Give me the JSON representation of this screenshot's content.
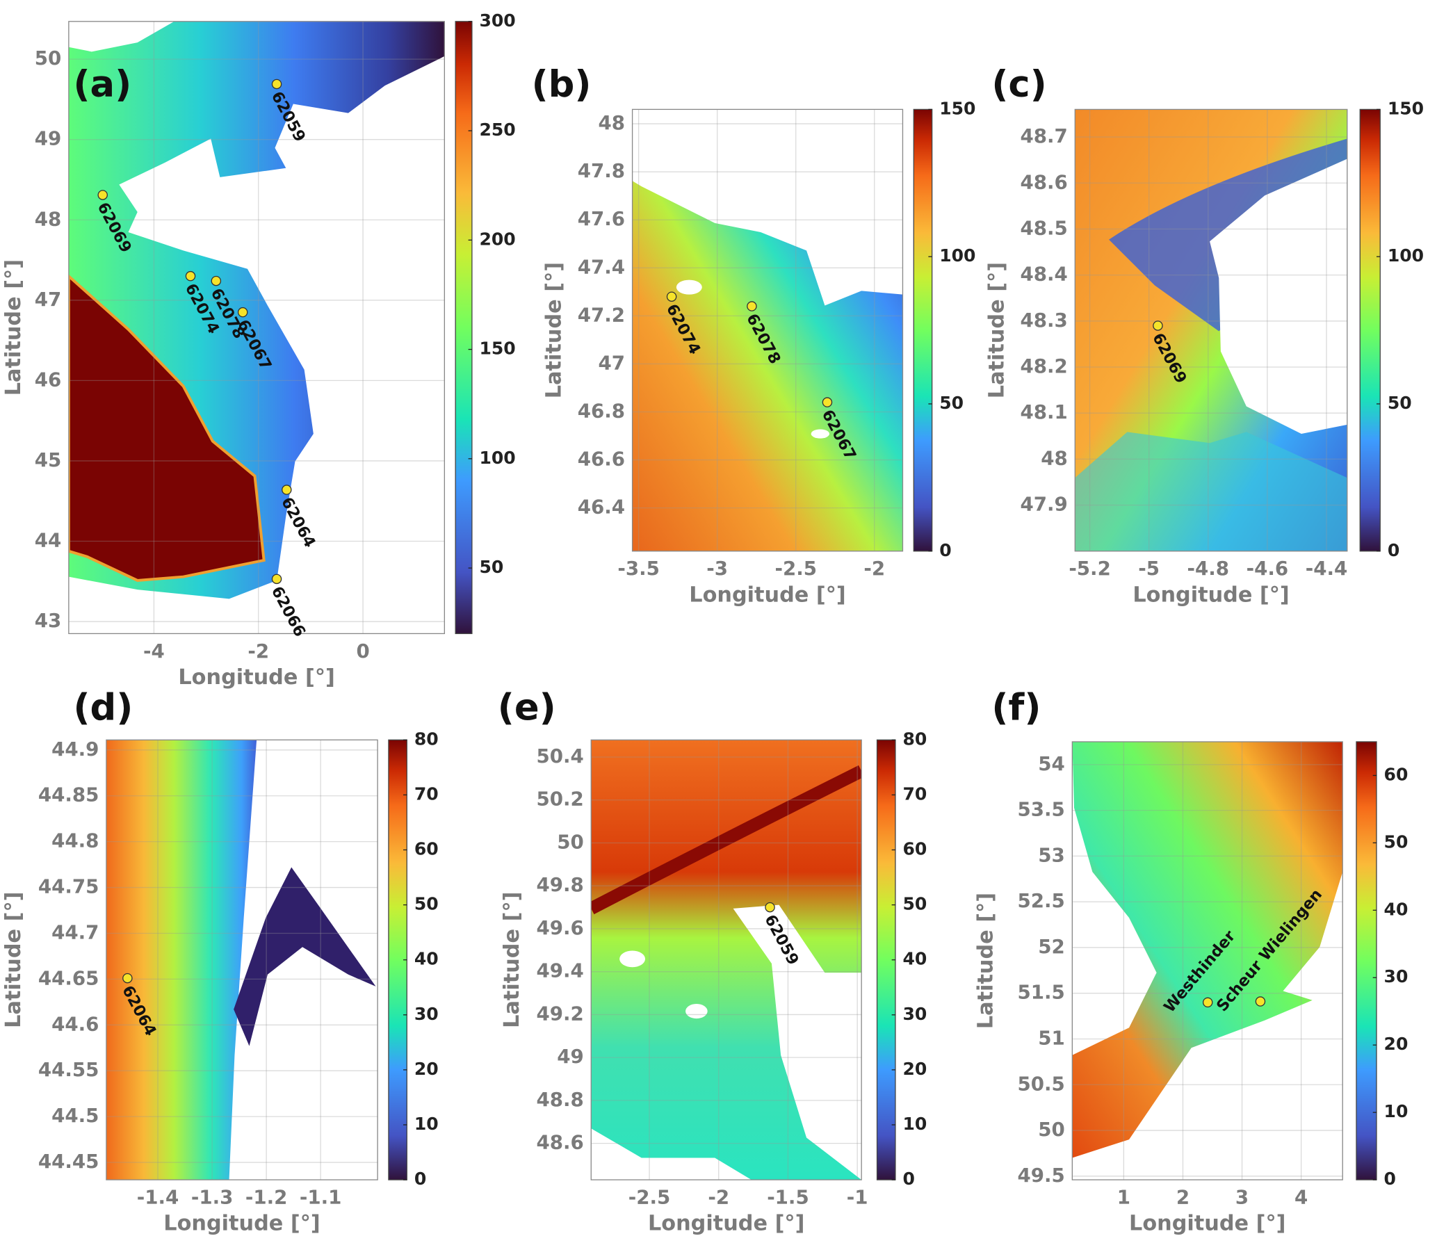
{
  "panels": [
    {
      "label": "(a)",
      "xlabel": "Longitude [°]",
      "ylabel": "Latitude [°]",
      "xlim": [
        -5.63,
        1.56
      ],
      "ylim": [
        42.85,
        50.47
      ],
      "xticks": [
        -4,
        -2,
        0
      ],
      "yticks": [
        43,
        44,
        45,
        46,
        47,
        48,
        49,
        50
      ],
      "colorbar": {
        "lim": [
          20,
          300
        ],
        "ticks": [
          50,
          100,
          150,
          200,
          250,
          300
        ]
      },
      "stations": [
        {
          "name": "62059",
          "lon": -1.65,
          "lat": 49.69
        },
        {
          "name": "62069",
          "lon": -4.98,
          "lat": 48.31
        },
        {
          "name": "62074",
          "lon": -3.3,
          "lat": 47.3
        },
        {
          "name": "62078",
          "lon": -2.81,
          "lat": 47.24
        },
        {
          "name": "62067",
          "lon": -2.3,
          "lat": 46.85
        },
        {
          "name": "62064",
          "lon": -1.46,
          "lat": 44.64
        },
        {
          "name": "62066",
          "lon": -1.65,
          "lat": 43.53
        }
      ]
    },
    {
      "label": "(b)",
      "xlabel": "Longitude [°]",
      "ylabel": "Latitude [°]",
      "xlim": [
        -3.54,
        -1.82
      ],
      "ylim": [
        46.22,
        48.06
      ],
      "xticks": [
        -3.5,
        -3,
        -2.5,
        -2
      ],
      "yticks": [
        46.4,
        46.6,
        46.8,
        47,
        47.2,
        47.4,
        47.6,
        47.8,
        48
      ],
      "colorbar": {
        "lim": [
          0,
          150
        ],
        "ticks": [
          0,
          50,
          100,
          150
        ]
      },
      "stations": [
        {
          "name": "62074",
          "lon": -3.29,
          "lat": 47.28
        },
        {
          "name": "62078",
          "lon": -2.78,
          "lat": 47.24
        },
        {
          "name": "62067",
          "lon": -2.3,
          "lat": 46.84
        }
      ]
    },
    {
      "label": "(c)",
      "xlabel": "Longitude [°]",
      "ylabel": "Latitude [°]",
      "xlim": [
        -5.25,
        -4.33
      ],
      "ylim": [
        47.8,
        48.76
      ],
      "xticks": [
        -5.2,
        -5,
        -4.8,
        -4.6,
        -4.4
      ],
      "yticks": [
        47.9,
        48,
        48.1,
        48.2,
        48.3,
        48.4,
        48.5,
        48.6,
        48.7
      ],
      "colorbar": {
        "lim": [
          0,
          150
        ],
        "ticks": [
          0,
          50,
          100,
          150
        ]
      },
      "stations": [
        {
          "name": "62069",
          "lon": -4.97,
          "lat": 48.29
        }
      ]
    },
    {
      "label": "(d)",
      "xlabel": "Longitude [°]",
      "ylabel": "Latitude [°]",
      "xlim": [
        -1.495,
        -0.995
      ],
      "ylim": [
        44.431,
        44.911
      ],
      "xticks": [
        -1.4,
        -1.3,
        -1.2,
        -1.1
      ],
      "yticks": [
        44.45,
        44.5,
        44.55,
        44.6,
        44.65,
        44.7,
        44.75,
        44.8,
        44.85,
        44.9
      ],
      "colorbar": {
        "lim": [
          0,
          80
        ],
        "ticks": [
          0,
          10,
          20,
          30,
          40,
          50,
          60,
          70,
          80
        ]
      },
      "stations": [
        {
          "name": "62064",
          "lon": -1.456,
          "lat": 44.651
        }
      ]
    },
    {
      "label": "(e)",
      "xlabel": "Longitude [°]",
      "ylabel": "Latitude [°]",
      "xlim": [
        -2.92,
        -0.97
      ],
      "ylim": [
        48.43,
        50.48
      ],
      "xticks": [
        -2.5,
        -2,
        -1.5,
        -1
      ],
      "yticks": [
        48.6,
        48.8,
        49,
        49.2,
        49.4,
        49.6,
        49.8,
        50,
        50.2,
        50.4
      ],
      "colorbar": {
        "lim": [
          0,
          80
        ],
        "ticks": [
          0,
          10,
          20,
          30,
          40,
          50,
          60,
          70,
          80
        ]
      },
      "stations": [
        {
          "name": "62059",
          "lon": -1.63,
          "lat": 49.7
        }
      ]
    },
    {
      "label": "(f)",
      "xlabel": "Longitude [°]",
      "ylabel": "Latitude [°]",
      "xlim": [
        0.13,
        4.7
      ],
      "ylim": [
        49.46,
        54.25
      ],
      "xticks": [
        1,
        2,
        3,
        4
      ],
      "yticks": [
        49.5,
        50,
        50.5,
        51,
        51.5,
        52,
        52.5,
        53,
        53.5,
        54
      ],
      "colorbar": {
        "lim": [
          0,
          65
        ],
        "ticks": [
          0,
          10,
          20,
          30,
          40,
          50,
          60
        ]
      },
      "stations": [
        {
          "name": "Westhinder",
          "lon": 2.42,
          "lat": 51.4
        },
        {
          "name": "Scheur Wielingen",
          "lon": 3.31,
          "lat": 51.41
        }
      ]
    }
  ]
}
